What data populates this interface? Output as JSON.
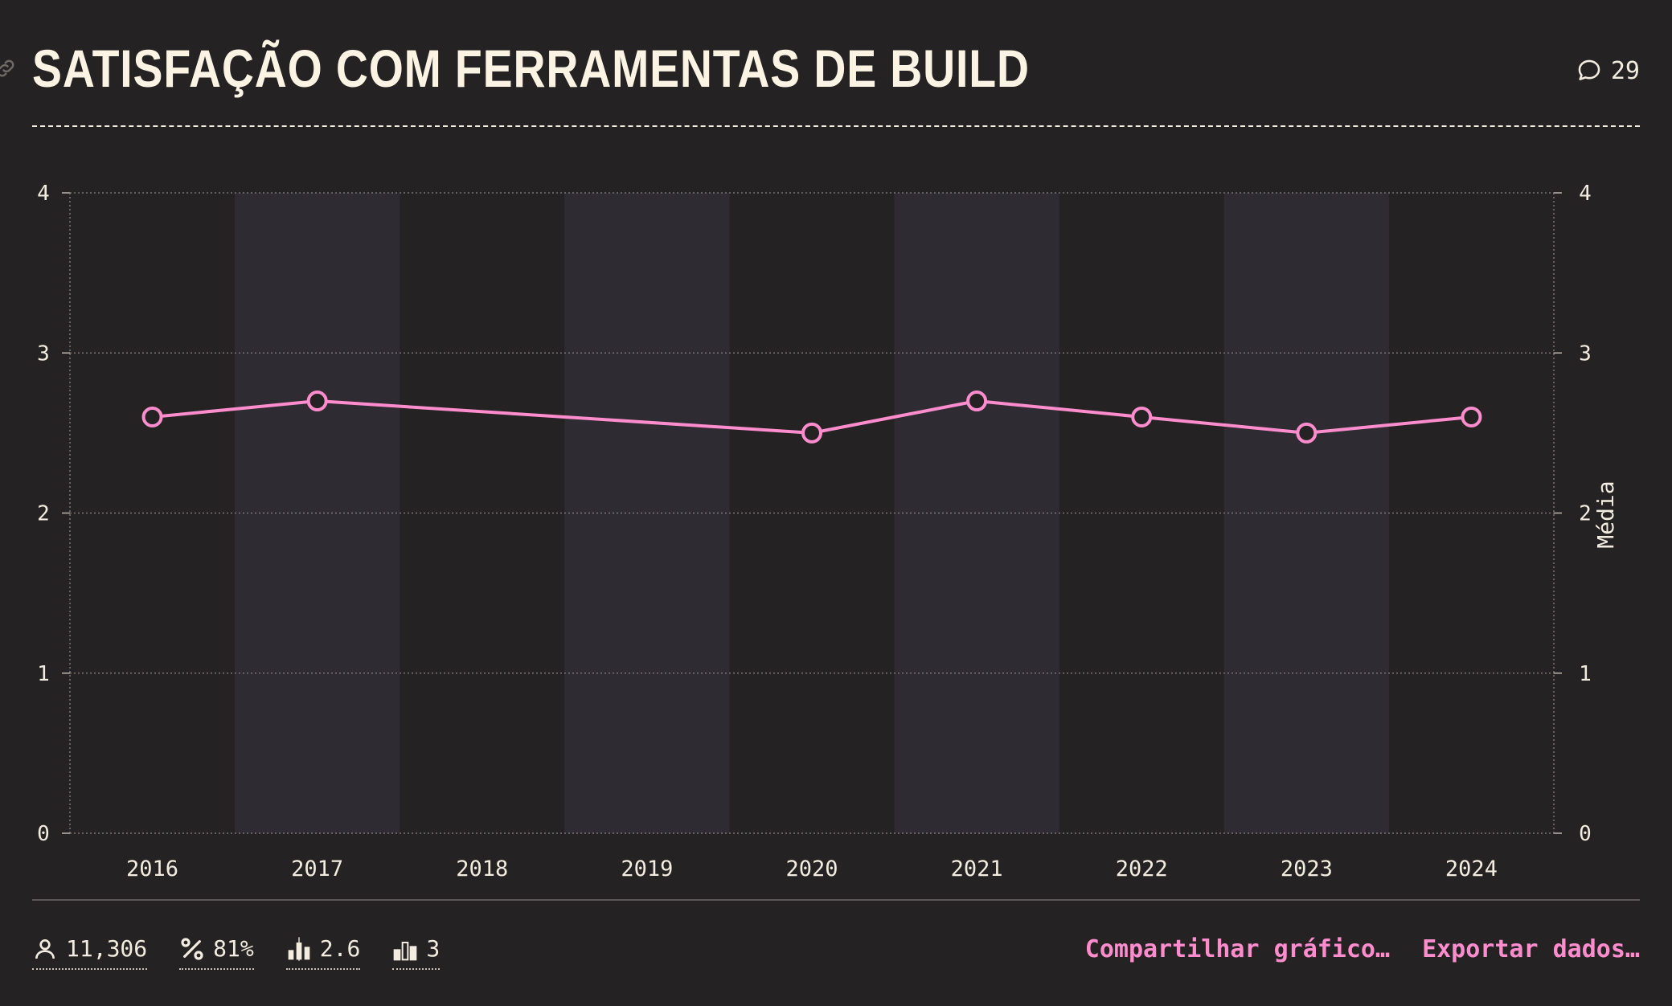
{
  "header": {
    "title": "SATISFAÇÃO COM FERRAMENTAS DE BUILD",
    "comment_count": "29",
    "icons": [
      "link-icon",
      "comment-icon"
    ]
  },
  "colors": {
    "background": "#252223",
    "band": "#2f2b33",
    "line": "#ff8ccc",
    "text": "#f3ece0"
  },
  "chart_data": {
    "type": "line",
    "title": "SATISFAÇÃO COM FERRAMENTAS DE BUILD",
    "categories": [
      "2016",
      "2017",
      "2018",
      "2019",
      "2020",
      "2021",
      "2022",
      "2023",
      "2024"
    ],
    "series": [
      {
        "values": [
          2.6,
          2.7,
          null,
          null,
          2.5,
          2.7,
          2.6,
          2.5,
          2.6
        ]
      }
    ],
    "xlabel": "",
    "ylabel": "Média",
    "ylim": [
      0,
      4
    ],
    "yticks": [
      "0",
      "1",
      "2",
      "3",
      "4"
    ],
    "grid": true,
    "alternating_bands": true
  },
  "footer": {
    "stats": [
      {
        "icon": "person-icon",
        "value": "11,306"
      },
      {
        "icon": "percent-icon",
        "value": "81%"
      },
      {
        "icon": "average-bars-icon",
        "value": "2.6"
      },
      {
        "icon": "median-bars-icon",
        "value": "3"
      }
    ],
    "actions": {
      "share_label": "Compartilhar gráfico…",
      "export_label": "Exportar dados…"
    }
  }
}
